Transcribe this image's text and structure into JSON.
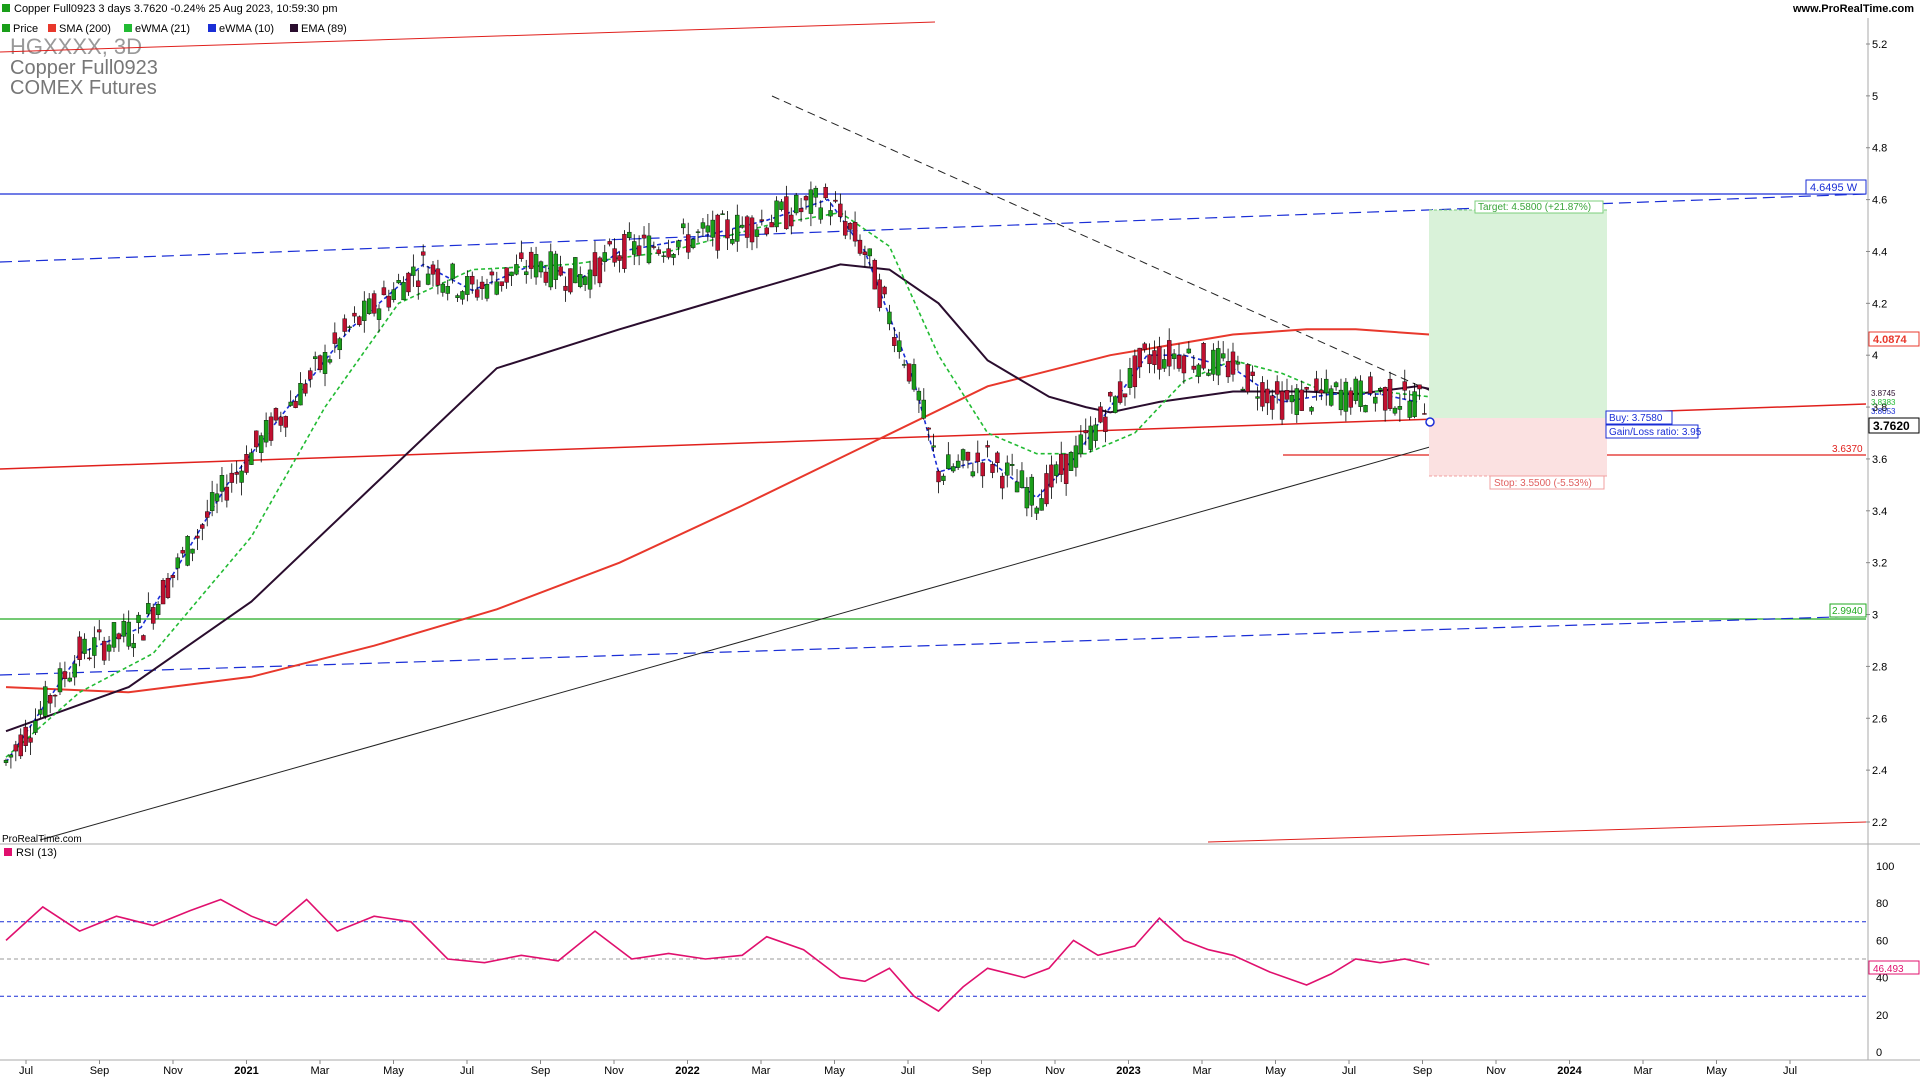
{
  "header": {
    "title": "Copper Full0923 3 days 3.7620 -0.24% 25 Aug 2023, 10:59:30 pm",
    "site": "www.ProRealTime.com",
    "legend": [
      {
        "label": "Price",
        "color": "#1a9e1a"
      },
      {
        "label": "SMA (200)",
        "color": "#e8382c"
      },
      {
        "label": "eWMA (21)",
        "color": "#22bb33"
      },
      {
        "label": "eWMA (10)",
        "color": "#1a2ed6"
      },
      {
        "label": "EMA (89)",
        "color": "#2a0d2e"
      }
    ]
  },
  "instrument": {
    "symbol": "HGXXXX, 3D",
    "name": "Copper Full0923",
    "exchange": "COMEX Futures"
  },
  "watermark": "ProRealTime.com",
  "rsi_panel": {
    "label": "RSI (13)",
    "color": "#e0106e",
    "levels": [
      70,
      50,
      30
    ],
    "current": "46.493",
    "ticks": [
      "100",
      "80",
      "60",
      "40",
      "20",
      "0"
    ]
  },
  "price_axis_ticks": [
    "5.2",
    "5",
    "4.8",
    "4.6",
    "4.4",
    "4.2",
    "4",
    "3.8",
    "3.6",
    "3.4",
    "3.2",
    "3",
    "2.8",
    "2.6",
    "2.4",
    "2.2"
  ],
  "time_axis_labels": [
    {
      "label": "Jul",
      "bold": false
    },
    {
      "label": "Sep",
      "bold": false
    },
    {
      "label": "Nov",
      "bold": false
    },
    {
      "label": "2021",
      "bold": true
    },
    {
      "label": "Mar",
      "bold": false
    },
    {
      "label": "May",
      "bold": false
    },
    {
      "label": "Jul",
      "bold": false
    },
    {
      "label": "Sep",
      "bold": false
    },
    {
      "label": "Nov",
      "bold": false
    },
    {
      "label": "2022",
      "bold": true
    },
    {
      "label": "Mar",
      "bold": false
    },
    {
      "label": "May",
      "bold": false
    },
    {
      "label": "Jul",
      "bold": false
    },
    {
      "label": "Sep",
      "bold": false
    },
    {
      "label": "Nov",
      "bold": false
    },
    {
      "label": "2023",
      "bold": true
    },
    {
      "label": "Mar",
      "bold": false
    },
    {
      "label": "May",
      "bold": false
    },
    {
      "label": "Jul",
      "bold": false
    },
    {
      "label": "Sep",
      "bold": false
    },
    {
      "label": "Nov",
      "bold": false
    },
    {
      "label": "2024",
      "bold": true
    },
    {
      "label": "Mar",
      "bold": false
    },
    {
      "label": "May",
      "bold": false
    },
    {
      "label": "Jul",
      "bold": false
    }
  ],
  "annotations": {
    "target": "Target: 4.5800 (+21.87%)",
    "buy": "Buy: 3.7580",
    "ratio": "Gain/Loss ratio: 3.95",
    "stop": "Stop: 3.5500 (-5.53%)",
    "resistance_tag": "4.6495 W",
    "support_tag": "2.9940",
    "sma200_tag": "4.0874",
    "level_tag": "3.6370",
    "last_price_tag": "3.7620",
    "ma_tags": [
      "3.8745",
      "3.8383",
      "3.8053"
    ]
  },
  "colors": {
    "up": "#1a9e1a",
    "down": "#c01030",
    "sma200": "#e8382c",
    "ewma21": "#22bb33",
    "ewma10": "#1a2ed6",
    "ema89": "#2a0d2e",
    "rsi": "#e0106e",
    "blue_line": "#1a2ed6",
    "green_line": "#22aa22",
    "red_line": "#e0201c"
  },
  "chart_data": {
    "type": "candlestick",
    "title": "Copper Full0923 3 days",
    "ylim": [
      2.1,
      5.3
    ],
    "series": [
      {
        "name": "SMA (200)",
        "points": [
          [
            0,
            2.72
          ],
          [
            100,
            2.7
          ],
          [
            200,
            2.76
          ],
          [
            300,
            2.88
          ],
          [
            400,
            3.02
          ],
          [
            500,
            3.2
          ],
          [
            600,
            3.42
          ],
          [
            700,
            3.65
          ],
          [
            800,
            3.88
          ],
          [
            900,
            4.0
          ],
          [
            1000,
            4.08
          ],
          [
            1060,
            4.1
          ],
          [
            1100,
            4.1
          ],
          [
            1160,
            4.08
          ]
        ]
      },
      {
        "name": "EMA (89)",
        "points": [
          [
            0,
            2.55
          ],
          [
            100,
            2.72
          ],
          [
            200,
            3.05
          ],
          [
            300,
            3.5
          ],
          [
            400,
            3.95
          ],
          [
            500,
            4.1
          ],
          [
            600,
            4.24
          ],
          [
            680,
            4.35
          ],
          [
            720,
            4.33
          ],
          [
            760,
            4.2
          ],
          [
            800,
            3.98
          ],
          [
            850,
            3.84
          ],
          [
            880,
            3.8
          ],
          [
            900,
            3.78
          ],
          [
            940,
            3.82
          ],
          [
            1000,
            3.86
          ],
          [
            1060,
            3.86
          ],
          [
            1100,
            3.85
          ],
          [
            1150,
            3.88
          ],
          [
            1160,
            3.87
          ]
        ]
      },
      {
        "name": "eWMA (21)",
        "points": [
          [
            0,
            2.45
          ],
          [
            60,
            2.7
          ],
          [
            120,
            2.85
          ],
          [
            200,
            3.3
          ],
          [
            260,
            3.8
          ],
          [
            320,
            4.2
          ],
          [
            380,
            4.33
          ],
          [
            460,
            4.35
          ],
          [
            540,
            4.4
          ],
          [
            620,
            4.5
          ],
          [
            680,
            4.55
          ],
          [
            720,
            4.42
          ],
          [
            760,
            4.0
          ],
          [
            800,
            3.7
          ],
          [
            840,
            3.62
          ],
          [
            880,
            3.62
          ],
          [
            920,
            3.7
          ],
          [
            960,
            3.9
          ],
          [
            1000,
            3.98
          ],
          [
            1040,
            3.93
          ],
          [
            1080,
            3.85
          ],
          [
            1120,
            3.86
          ],
          [
            1160,
            3.84
          ]
        ]
      },
      {
        "name": "eWMA (10)",
        "points": [
          [
            0,
            2.43
          ],
          [
            60,
            2.85
          ],
          [
            110,
            2.95
          ],
          [
            180,
            3.5
          ],
          [
            230,
            3.8
          ],
          [
            280,
            4.1
          ],
          [
            340,
            4.35
          ],
          [
            380,
            4.25
          ],
          [
            430,
            4.35
          ],
          [
            470,
            4.3
          ],
          [
            500,
            4.4
          ],
          [
            560,
            4.45
          ],
          [
            620,
            4.52
          ],
          [
            670,
            4.6
          ],
          [
            700,
            4.4
          ],
          [
            740,
            3.9
          ],
          [
            760,
            3.55
          ],
          [
            800,
            3.6
          ],
          [
            840,
            3.45
          ],
          [
            870,
            3.6
          ],
          [
            900,
            3.8
          ],
          [
            930,
            4.0
          ],
          [
            960,
            4.0
          ],
          [
            1000,
            3.95
          ],
          [
            1040,
            3.82
          ],
          [
            1080,
            3.85
          ],
          [
            1120,
            3.85
          ],
          [
            1150,
            3.82
          ]
        ]
      },
      {
        "name": "RSI (13)",
        "points": [
          [
            0,
            60
          ],
          [
            30,
            78
          ],
          [
            60,
            65
          ],
          [
            90,
            73
          ],
          [
            120,
            68
          ],
          [
            150,
            76
          ],
          [
            175,
            82
          ],
          [
            200,
            73
          ],
          [
            220,
            68
          ],
          [
            245,
            82
          ],
          [
            270,
            65
          ],
          [
            300,
            73
          ],
          [
            330,
            70
          ],
          [
            360,
            50
          ],
          [
            390,
            48
          ],
          [
            420,
            52
          ],
          [
            450,
            49
          ],
          [
            480,
            65
          ],
          [
            510,
            50
          ],
          [
            540,
            53
          ],
          [
            570,
            50
          ],
          [
            600,
            52
          ],
          [
            620,
            62
          ],
          [
            650,
            55
          ],
          [
            680,
            40
          ],
          [
            700,
            38
          ],
          [
            720,
            45
          ],
          [
            740,
            30
          ],
          [
            760,
            22
          ],
          [
            780,
            35
          ],
          [
            800,
            45
          ],
          [
            830,
            40
          ],
          [
            850,
            45
          ],
          [
            870,
            60
          ],
          [
            890,
            52
          ],
          [
            920,
            57
          ],
          [
            940,
            72
          ],
          [
            960,
            60
          ],
          [
            980,
            55
          ],
          [
            1000,
            52
          ],
          [
            1030,
            43
          ],
          [
            1060,
            36
          ],
          [
            1080,
            42
          ],
          [
            1100,
            50
          ],
          [
            1120,
            48
          ],
          [
            1140,
            50
          ],
          [
            1160,
            47
          ]
        ]
      }
    ],
    "price_last": 3.762
  }
}
